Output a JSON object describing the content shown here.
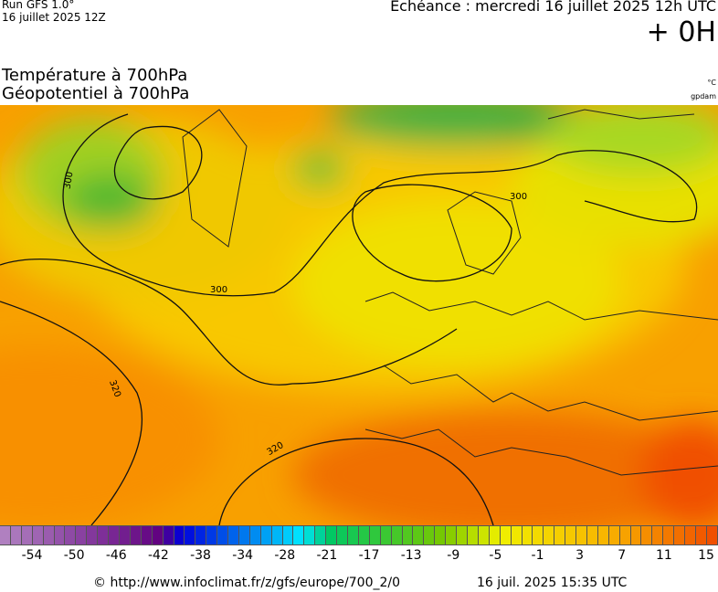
{
  "header": {
    "run": "Run GFS 1.0°",
    "run_date": "16 juillet 2025 12Z",
    "valid": "Echéance : mercredi 16 juillet 2025 12h UTC",
    "lead": "+ 0H",
    "title_temp": "Température à 700hPa",
    "title_geo": "Géopotentiel à 700hPa",
    "unit_temp": "°C",
    "unit_geo": "gpdam"
  },
  "map": {
    "contour_labels": [
      "300",
      "300",
      "300",
      "320",
      "320"
    ]
  },
  "legend": {
    "labels": [
      -54,
      -50,
      -46,
      -42,
      -38,
      -34,
      -28,
      -21,
      -17,
      -13,
      -9,
      -5,
      -1,
      3,
      7,
      11,
      15
    ]
  },
  "footer": {
    "source": "© http://www.infoclimat.fr/z/gfs/europe/700_2/0",
    "generated": "16 juil. 2025 15:35 UTC"
  }
}
